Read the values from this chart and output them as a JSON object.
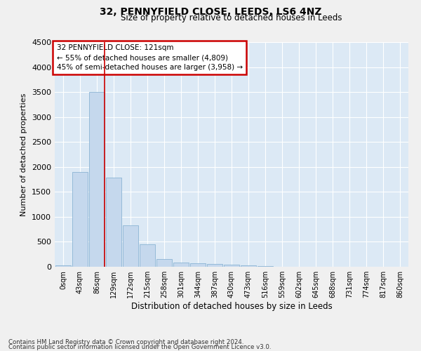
{
  "title": "32, PENNYFIELD CLOSE, LEEDS, LS6 4NZ",
  "subtitle": "Size of property relative to detached houses in Leeds",
  "xlabel": "Distribution of detached houses by size in Leeds",
  "ylabel": "Number of detached properties",
  "bar_color": "#c5d8ed",
  "bar_edge_color": "#8bb4d4",
  "bg_color": "#dce9f5",
  "grid_color": "#ffffff",
  "annotation_box_color": "#cc0000",
  "annotation_line_color": "#cc0000",
  "bins": [
    "0sqm",
    "43sqm",
    "86sqm",
    "129sqm",
    "172sqm",
    "215sqm",
    "258sqm",
    "301sqm",
    "344sqm",
    "387sqm",
    "430sqm",
    "473sqm",
    "516sqm",
    "559sqm",
    "602sqm",
    "645sqm",
    "688sqm",
    "731sqm",
    "774sqm",
    "817sqm",
    "860sqm"
  ],
  "values": [
    30,
    1900,
    3500,
    1780,
    830,
    450,
    155,
    90,
    70,
    50,
    40,
    30,
    10,
    5,
    3,
    2,
    2,
    1,
    1,
    1,
    0
  ],
  "ylim": [
    0,
    4500
  ],
  "yticks": [
    0,
    500,
    1000,
    1500,
    2000,
    2500,
    3000,
    3500,
    4000,
    4500
  ],
  "property_bin_index": 2,
  "annotation_title": "32 PENNYFIELD CLOSE: 121sqm",
  "annotation_line1": "← 55% of detached houses are smaller (4,809)",
  "annotation_line2": "45% of semi-detached houses are larger (3,958) →",
  "footer_line1": "Contains HM Land Registry data © Crown copyright and database right 2024.",
  "footer_line2": "Contains public sector information licensed under the Open Government Licence v3.0."
}
